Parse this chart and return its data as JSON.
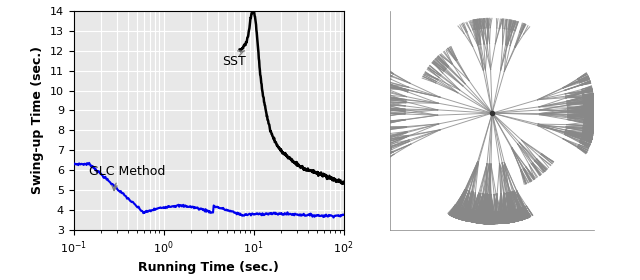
{
  "left_plot": {
    "xlabel": "Running Time (sec.)",
    "ylabel": "Swing-up Time (sec.)",
    "ylim": [
      3,
      14
    ],
    "yticks": [
      3,
      4,
      5,
      6,
      7,
      8,
      9,
      10,
      11,
      12,
      13,
      14
    ],
    "background_color": "#e8e8e8",
    "grid_color": "#ffffff",
    "sst_label": "SST",
    "glc_label": "GLC Method",
    "sst_color": "#000000",
    "glc_color": "#0000ee"
  },
  "right_plot": {
    "line_color": "#888888",
    "bg_color": "#ffffff"
  }
}
